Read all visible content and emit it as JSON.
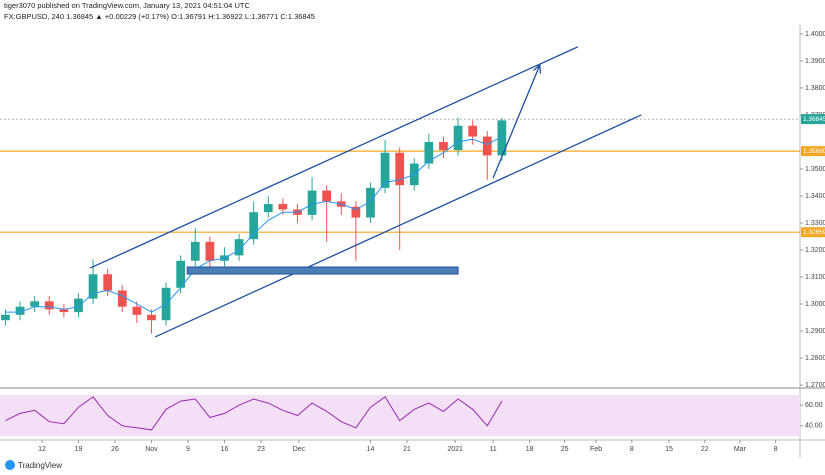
{
  "chart_data": {
    "type": "candlestick",
    "title": "tiger3070 published on TradingView.com, January 13, 2021 04:51:04 UTC",
    "subtitle": "FX:GBPUSD, 240  1.36845 ▲ +0.00229 (+0.17%) O:1.36791 H:1.36922 L:1.36771 C:1.36845",
    "footer": "TradingView",
    "grid": false,
    "up_color": "#26a69a",
    "down_color": "#ef5350",
    "x": [
      -5,
      -3,
      -1,
      1,
      3,
      5,
      7,
      9,
      11,
      13,
      15,
      17,
      19,
      21,
      23,
      25,
      27,
      29,
      31,
      33,
      35,
      37,
      39,
      41,
      43,
      45,
      47,
      49,
      51,
      53,
      55,
      57,
      59,
      61,
      63
    ],
    "open": [
      1.294,
      1.296,
      1.299,
      1.301,
      1.298,
      1.297,
      1.302,
      1.311,
      1.305,
      1.299,
      1.296,
      1.294,
      1.306,
      1.316,
      1.323,
      1.316,
      1.318,
      1.324,
      1.334,
      1.337,
      1.335,
      1.333,
      1.342,
      1.338,
      1.336,
      1.332,
      1.343,
      1.356,
      1.344,
      1.352,
      1.36,
      1.357,
      1.366,
      1.362,
      1.355
    ],
    "high": [
      1.298,
      1.301,
      1.303,
      1.303,
      1.3,
      1.304,
      1.3165,
      1.313,
      1.307,
      1.301,
      1.298,
      1.308,
      1.318,
      1.328,
      1.325,
      1.321,
      1.326,
      1.338,
      1.34,
      1.339,
      1.337,
      1.347,
      1.344,
      1.341,
      1.338,
      1.345,
      1.3607,
      1.358,
      1.354,
      1.363,
      1.362,
      1.369,
      1.368,
      1.364,
      1.369
    ],
    "low": [
      1.292,
      1.294,
      1.297,
      1.296,
      1.295,
      1.295,
      1.3,
      1.303,
      1.297,
      1.293,
      1.289,
      1.292,
      1.304,
      1.314,
      1.312,
      1.314,
      1.316,
      1.322,
      1.332,
      1.333,
      1.33,
      1.331,
      1.323,
      1.333,
      1.316,
      1.33,
      1.341,
      1.32,
      1.342,
      1.35,
      1.354,
      1.355,
      1.359,
      1.346,
      1.353
    ],
    "close": [
      1.296,
      1.299,
      1.301,
      1.298,
      1.297,
      1.302,
      1.311,
      1.305,
      1.299,
      1.296,
      1.294,
      1.306,
      1.316,
      1.323,
      1.316,
      1.318,
      1.324,
      1.334,
      1.337,
      1.335,
      1.333,
      1.342,
      1.338,
      1.336,
      1.332,
      1.343,
      1.356,
      1.344,
      1.352,
      1.36,
      1.357,
      1.366,
      1.362,
      1.355,
      1.368
    ],
    "ma": {
      "color": "#2196f3",
      "values": [
        1.297,
        1.297,
        1.299,
        1.299,
        1.298,
        1.299,
        1.304,
        1.305,
        1.303,
        1.3,
        1.297,
        1.3,
        1.306,
        1.313,
        1.316,
        1.317,
        1.32,
        1.326,
        1.331,
        1.334,
        1.334,
        1.337,
        1.338,
        1.337,
        1.335,
        1.338,
        1.345,
        1.346,
        1.348,
        1.353,
        1.356,
        1.36,
        1.361,
        1.359,
        1.362
      ]
    },
    "xlim": [
      -5.75,
      103.84
    ],
    "xticks": [
      {
        "value": 0,
        "label": "12"
      },
      {
        "value": 5,
        "label": "19"
      },
      {
        "value": 10,
        "label": "26"
      },
      {
        "value": 15,
        "label": "Nov"
      },
      {
        "value": 20,
        "label": "9"
      },
      {
        "value": 25,
        "label": "16"
      },
      {
        "value": 30,
        "label": "23"
      },
      {
        "value": 35.2,
        "label": "Dec"
      },
      {
        "value": 45,
        "label": "14"
      },
      {
        "value": 50,
        "label": "21"
      },
      {
        "value": 56.6,
        "label": "2021"
      },
      {
        "value": 61.8,
        "label": "11"
      },
      {
        "value": 66.8,
        "label": "18"
      },
      {
        "value": 71.6,
        "label": "25"
      },
      {
        "value": 75.9,
        "label": "Feb"
      },
      {
        "value": 80.8,
        "label": "8"
      },
      {
        "value": 85.9,
        "label": "15"
      },
      {
        "value": 90.8,
        "label": "22"
      },
      {
        "value": 95.6,
        "label": "Mar"
      },
      {
        "value": 100.5,
        "label": "8"
      }
    ],
    "ylim": [
      1.2689,
      1.4033
    ],
    "yticks": [
      {
        "value": 1.27,
        "label": "1.27000"
      },
      {
        "value": 1.28,
        "label": "1.28000"
      },
      {
        "value": 1.29,
        "label": "1.29000"
      },
      {
        "value": 1.3,
        "label": "1.30000"
      },
      {
        "value": 1.31,
        "label": "1.31000"
      },
      {
        "value": 1.32,
        "label": "1.32000"
      },
      {
        "value": 1.33,
        "label": "1.33000"
      },
      {
        "value": 1.34,
        "label": "1.34000"
      },
      {
        "value": 1.35,
        "label": "1.35000"
      },
      {
        "value": 1.37,
        "label": "1.37000"
      },
      {
        "value": 1.38,
        "label": "1.38000"
      },
      {
        "value": 1.39,
        "label": "1.39000"
      },
      {
        "value": 1.4,
        "label": "1.40000"
      }
    ],
    "price_lines": [
      {
        "value": 1.36845,
        "label": "1.36845",
        "color": "#26a69a",
        "style": "dotted"
      },
      {
        "value": 1.3566,
        "label": "1.35660",
        "color": "#f5a623",
        "style": "solid"
      },
      {
        "value": 1.32659,
        "label": "1.32659",
        "color": "#f5a623",
        "style": "solid"
      }
    ],
    "drawings": [
      {
        "kind": "line",
        "x": [
          6.6,
          73.4
        ],
        "y": [
          1.3133,
          1.3952
        ]
      },
      {
        "kind": "line",
        "x": [
          15.5,
          82.1
        ],
        "y": [
          1.2878,
          1.37
        ]
      },
      {
        "kind": "arrow",
        "x": [
          61.8,
          68.2
        ],
        "y": [
          1.3467,
          1.3885
        ]
      },
      {
        "kind": "rect",
        "x": [
          19.9,
          57
        ],
        "y": [
          1.3137,
          1.3111
        ]
      }
    ],
    "drawing_color": "#1e4fa0",
    "rsi": {
      "color": "#9c27b0",
      "band_color": "#f3e0f7",
      "band": [
        30,
        70
      ],
      "ylim": [
        26.2,
        75.7
      ],
      "yticks": [
        {
          "value": 60,
          "label": "60.00"
        },
        {
          "value": 40,
          "label": "40.00"
        }
      ],
      "values": [
        45,
        52,
        55,
        44,
        42,
        58,
        68,
        50,
        40,
        38,
        36,
        56,
        64,
        66,
        48,
        52,
        60,
        66,
        62,
        55,
        50,
        62,
        54,
        44,
        38,
        58,
        68,
        45,
        56,
        62,
        54,
        66,
        56,
        40,
        64
      ]
    }
  }
}
